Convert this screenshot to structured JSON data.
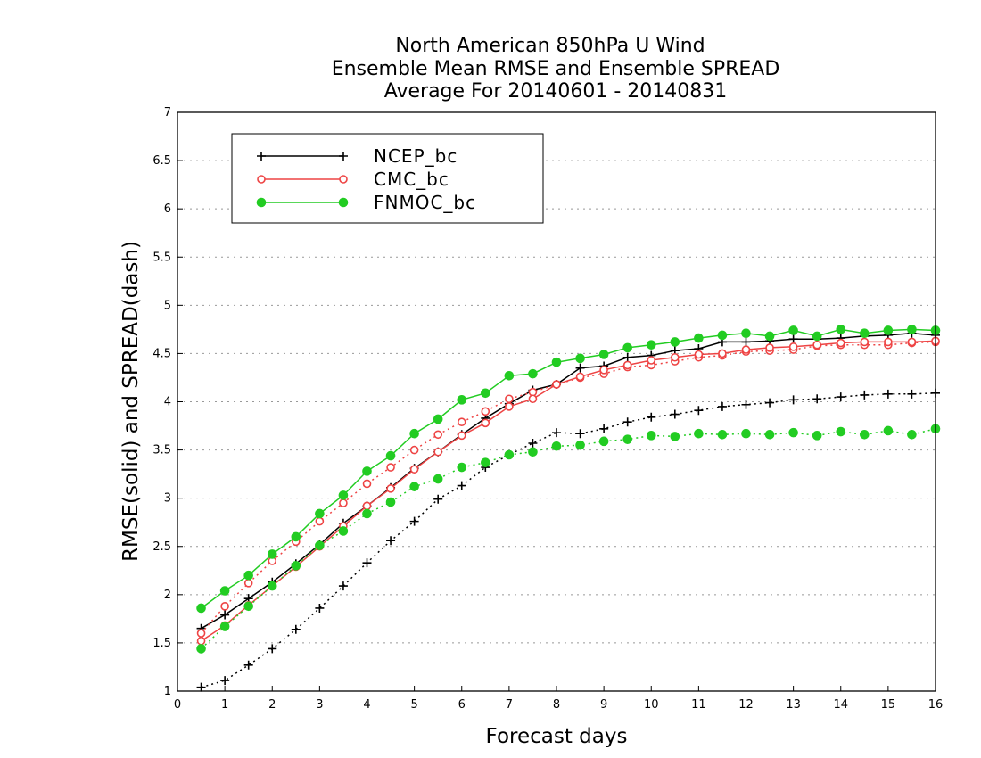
{
  "chart_data": {
    "type": "line",
    "title": [
      "North American 850hPa U Wind",
      "Ensemble Mean RMSE and Ensemble SPREAD",
      "Average For 20140601 - 20140831"
    ],
    "xlabel": "Forecast days",
    "ylabel": "RMSE(solid) and SPREAD(dash)",
    "xlim": [
      0,
      16
    ],
    "ylim": [
      1,
      7
    ],
    "x_ticks": [
      "0",
      "1",
      "2",
      "3",
      "4",
      "5",
      "6",
      "7",
      "8",
      "9",
      "10",
      "11",
      "12",
      "13",
      "14",
      "15",
      "16"
    ],
    "y_ticks": [
      "1",
      "1.5",
      "2",
      "2.5",
      "3",
      "3.5",
      "4",
      "4.5",
      "5",
      "5.5",
      "6",
      "6.5",
      "7"
    ],
    "grid": "horizontal dotted",
    "legend_position": "top-left",
    "x": [
      0.5,
      1,
      1.5,
      2,
      2.5,
      3,
      3.5,
      4,
      4.5,
      5,
      5.5,
      6,
      6.5,
      7,
      7.5,
      8,
      8.5,
      9,
      9.5,
      10,
      10.5,
      11,
      11.5,
      12,
      12.5,
      13,
      13.5,
      14,
      14.5,
      15,
      15.5,
      16
    ],
    "series": [
      {
        "name": "NCEP_bc",
        "color": "#000000",
        "marker": "plus",
        "rmse": [
          1.65,
          1.79,
          1.96,
          2.13,
          2.32,
          2.52,
          2.74,
          2.92,
          3.11,
          3.31,
          3.48,
          3.66,
          3.83,
          3.98,
          4.12,
          4.18,
          4.35,
          4.37,
          4.46,
          4.48,
          4.53,
          4.55,
          4.62,
          4.62,
          4.63,
          4.65,
          4.65,
          4.66,
          4.68,
          4.69,
          4.71,
          4.69
        ],
        "spread": [
          1.04,
          1.11,
          1.27,
          1.44,
          1.64,
          1.86,
          2.09,
          2.33,
          2.56,
          2.76,
          2.99,
          3.13,
          3.32,
          3.45,
          3.57,
          3.68,
          3.67,
          3.72,
          3.79,
          3.84,
          3.87,
          3.91,
          3.95,
          3.97,
          3.99,
          4.02,
          4.03,
          4.05,
          4.07,
          4.08,
          4.08,
          4.09
        ]
      },
      {
        "name": "CMC_bc",
        "color": "#ee4444",
        "marker": "open-circle",
        "rmse": [
          1.52,
          1.68,
          1.89,
          2.09,
          2.29,
          2.5,
          2.71,
          2.92,
          3.1,
          3.3,
          3.48,
          3.65,
          3.78,
          3.95,
          4.03,
          4.18,
          4.26,
          4.33,
          4.38,
          4.43,
          4.46,
          4.49,
          4.5,
          4.54,
          4.56,
          4.57,
          4.59,
          4.61,
          4.62,
          4.62,
          4.62,
          4.63
        ],
        "spread": [
          1.6,
          1.88,
          2.12,
          2.35,
          2.55,
          2.76,
          2.95,
          3.15,
          3.32,
          3.5,
          3.66,
          3.79,
          3.9,
          4.03,
          4.1,
          4.18,
          4.25,
          4.29,
          4.36,
          4.38,
          4.42,
          4.46,
          4.48,
          4.52,
          4.53,
          4.54,
          4.58,
          4.59,
          4.59,
          4.59,
          4.61,
          4.62
        ]
      },
      {
        "name": "FNMOC_bc",
        "color": "#22cc22",
        "marker": "filled-circle",
        "rmse": [
          1.86,
          2.04,
          2.2,
          2.42,
          2.6,
          2.84,
          3.03,
          3.28,
          3.44,
          3.67,
          3.82,
          4.02,
          4.09,
          4.27,
          4.29,
          4.41,
          4.45,
          4.49,
          4.56,
          4.59,
          4.62,
          4.66,
          4.69,
          4.71,
          4.68,
          4.74,
          4.68,
          4.75,
          4.71,
          4.74,
          4.75,
          4.74
        ],
        "spread": [
          1.44,
          1.67,
          1.88,
          2.09,
          2.3,
          2.51,
          2.66,
          2.84,
          2.96,
          3.12,
          3.2,
          3.32,
          3.37,
          3.45,
          3.48,
          3.54,
          3.55,
          3.59,
          3.61,
          3.65,
          3.64,
          3.67,
          3.66,
          3.67,
          3.66,
          3.68,
          3.65,
          3.69,
          3.66,
          3.7,
          3.66,
          3.72
        ]
      }
    ]
  }
}
